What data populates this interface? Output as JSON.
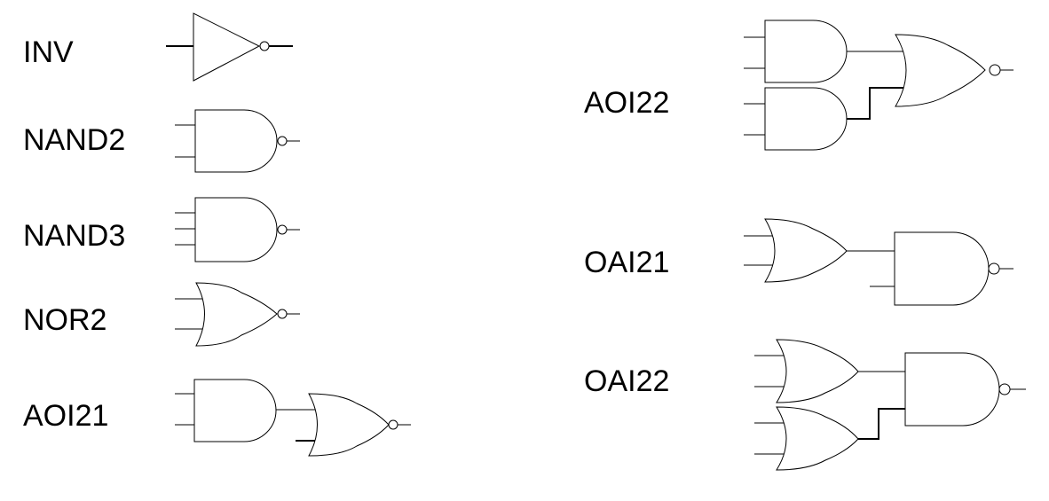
{
  "gates": {
    "inv": {
      "label": "INV"
    },
    "nand2": {
      "label": "NAND2"
    },
    "nand3": {
      "label": "NAND3"
    },
    "nor2": {
      "label": "NOR2"
    },
    "aoi21": {
      "label": "AOI21"
    },
    "aoi22": {
      "label": "AOI22"
    },
    "oai21": {
      "label": "OAI21"
    },
    "oai22": {
      "label": "OAI22"
    }
  }
}
